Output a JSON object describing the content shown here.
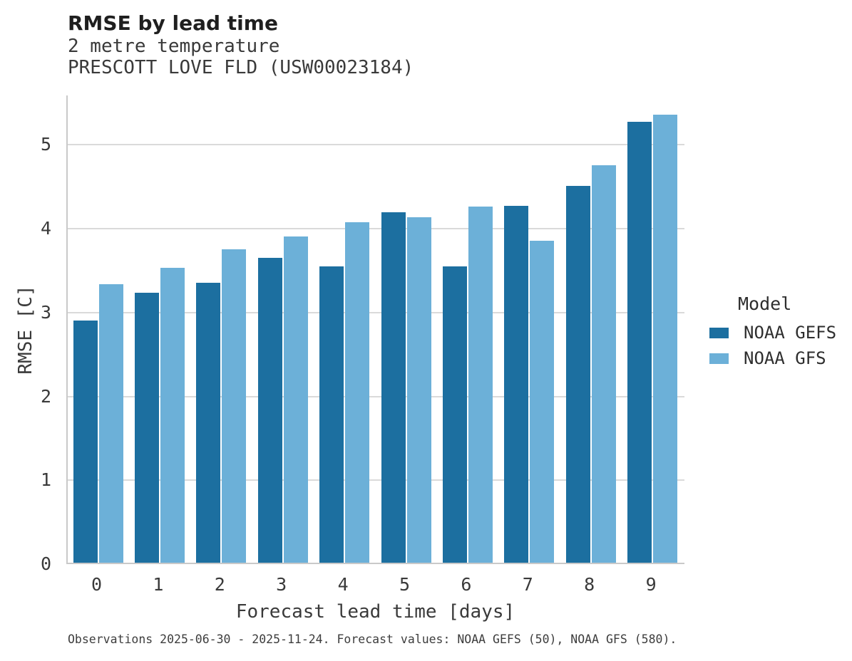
{
  "header": {
    "title": "RMSE by lead time",
    "subtitle1": "2 metre temperature",
    "subtitle2": "PRESCOTT LOVE FLD (USW00023184)"
  },
  "legend": {
    "title": "Model",
    "entries": [
      {
        "label": "NOAA GEFS",
        "color": "#1c6fa0"
      },
      {
        "label": "NOAA GFS",
        "color": "#6cb0d8"
      }
    ]
  },
  "footer": {
    "note": "Observations 2025-06-30 - 2025-11-24. Forecast values: NOAA GEFS (50), NOAA GFS (580)."
  },
  "chart_data": {
    "type": "bar",
    "title": "RMSE by lead time",
    "subtitle": [
      "2 metre temperature",
      "PRESCOTT LOVE FLD (USW00023184)"
    ],
    "xlabel": "Forecast lead time [days]",
    "ylabel": "RMSE [C]",
    "categories": [
      0,
      1,
      2,
      3,
      4,
      5,
      6,
      7,
      8,
      9
    ],
    "series": [
      {
        "name": "NOAA GEFS",
        "color": "#1c6fa0",
        "values": [
          2.89,
          3.22,
          3.34,
          3.64,
          3.53,
          4.18,
          3.53,
          4.26,
          4.49,
          5.26
        ]
      },
      {
        "name": "NOAA GFS",
        "color": "#6cb0d8",
        "values": [
          3.32,
          3.52,
          3.74,
          3.89,
          4.06,
          4.12,
          4.25,
          3.84,
          4.74,
          5.34
        ]
      }
    ],
    "ylim": [
      0,
      5.59
    ],
    "yticks": [
      0,
      1,
      2,
      3,
      4,
      5
    ],
    "grid": true,
    "legend_title": "Model",
    "legend_position": "right",
    "annotation": "Observations 2025-06-30 - 2025-11-24. Forecast values: NOAA GEFS (50), NOAA GFS (580)."
  },
  "colors": {
    "gefs_bar": "#1c6fa0",
    "gfs_bar": "#6cb0d8",
    "gridline": "#dadada",
    "spine": "#c9c9c9",
    "title_text": "#1f1f1f",
    "axis_text": "#3a3a3a"
  }
}
